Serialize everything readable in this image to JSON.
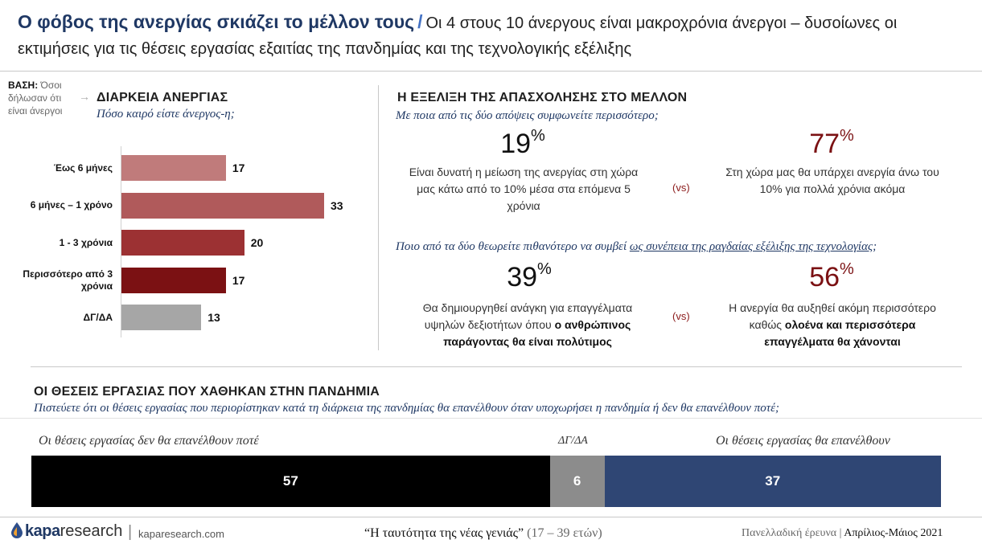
{
  "header": {
    "title": "Ο φόβος της ανεργίας σκιάζει το μέλλον τους",
    "slash": "/",
    "subtitle_1": "Οι 4 στους 10 άνεργους είναι μακροχρόνια άνεργοι – δυσοίωνες οι",
    "subtitle_2": "εκτιμήσεις για τις θέσεις εργασίας εξαιτίας της πανδημίας και της τεχνολογικής εξέλιξης"
  },
  "base": {
    "label": "ΒΑΣΗ:",
    "text": "Όσοι δήλωσαν ότι είναι άνεργοι"
  },
  "colors": {
    "title_blue": "#1f3864",
    "dark_red": "#7b1113",
    "navy": "#2f4674",
    "grey": "#8c8c8c",
    "black": "#000000"
  },
  "chart_data": [
    {
      "type": "bar",
      "orientation": "horizontal",
      "title": "ΔΙΑΡΚΕΙΑ ΑΝΕΡΓΙΑΣ",
      "subtitle": "Πόσο καιρό είστε άνεργος-η;",
      "categories": [
        "Έως 6 μήνες",
        "6 μήνες – 1 χρόνο",
        "1 - 3 χρόνια",
        "Περισσότερο από 3 χρόνια",
        "ΔΓ/ΔΑ"
      ],
      "category_lines": [
        [
          "Έως 6 μήνες"
        ],
        [
          "6 μήνες – 1 χρόνο"
        ],
        [
          "1 - 3 χρόνια"
        ],
        [
          "Περισσότερο από 3",
          "χρόνια"
        ],
        [
          "ΔΓ/ΔΑ"
        ]
      ],
      "values": [
        17,
        33,
        20,
        17,
        13
      ],
      "bar_colors": [
        "#c07b7b",
        "#b05a5b",
        "#9c3133",
        "#7b1113",
        "#a6a6a6"
      ],
      "xlim": [
        0,
        33
      ]
    },
    {
      "type": "bar",
      "orientation": "stacked-horizontal",
      "title": "ΟΙ ΘΕΣΕΙΣ ΕΡΓΑΣΙΑΣ ΠΟΥ ΧΑΘΗΚΑΝ ΣΤΗΝ ΠΑΝΔΗΜΙΑ",
      "subtitle": "Πιστεύετε ότι οι θέσεις εργασίας που περιορίστηκαν κατά τη διάρκεια της πανδημίας θα επανέλθουν όταν υποχωρήσει η πανδημία ή δεν θα επανέλθουν ποτέ;",
      "series": [
        {
          "name": "Οι θέσεις εργασίας δεν θα επανέλθουν ποτέ",
          "value": 57,
          "color": "#000000"
        },
        {
          "name": "ΔΓ/ΔΑ",
          "value": 6,
          "color": "#8c8c8c"
        },
        {
          "name": "Οι θέσεις εργασίας θα επανέλθουν",
          "value": 37,
          "color": "#2f4674"
        }
      ]
    }
  ],
  "future": {
    "title": "Η ΕΞΕΛΙΞΗ ΤΗΣ ΑΠΑΣΧΟΛΗΣΗΣ ΣΤΟ ΜΕΛΛΟΝ",
    "q1": "Με ποια από τις δύο απόψεις συμφωνείτε περισσότερο;",
    "q1_left_pct": "19",
    "q1_left_text": "Είναι δυνατή η μείωση της ανεργίας στη χώρα μας κάτω από το 10% μέσα στα επόμενα 5 χρόνια",
    "q1_right_pct": "77",
    "q1_right_text": "Στη χώρα μας θα υπάρχει ανεργία άνω του 10% για πολλά χρόνια ακόμα",
    "vs": "(vs)",
    "pct_sign": "%",
    "q2_a": "Ποιο από τα δύο θεωρείτε πιθανότερο να συμβεί",
    "q2_b": "ως συνέπεια της ραγδαίας εξέλιξης της τεχνολογίας",
    "q2_c": ";",
    "q2_left_pct": "39",
    "q2_left_text_a": "Θα δημιουργηθεί ανάγκη για επαγγέλματα υψηλών δεξιοτήτων όπου",
    "q2_left_text_b": "ο ανθρώπινος παράγοντας θα είναι πολύτιμος",
    "q2_right_pct": "56",
    "q2_right_text_a": "Η ανεργία θα αυξηθεί ακόμη περισσότερο καθώς",
    "q2_right_text_b": "ολοένα και περισσότερα επαγγέλματα θα χάνονται"
  },
  "footer": {
    "logo_a": "kapa",
    "logo_b": "research",
    "divider": "|",
    "site": "kaparesearch.com",
    "study_title": "“Η ταυτότητα της νέας γενιάς”",
    "study_ages": "(17 – 39 ετών)",
    "survey": "Πανελλαδική έρευνα",
    "survey_sep": "|",
    "period": "Απρίλιος-Μάιος 2021"
  }
}
